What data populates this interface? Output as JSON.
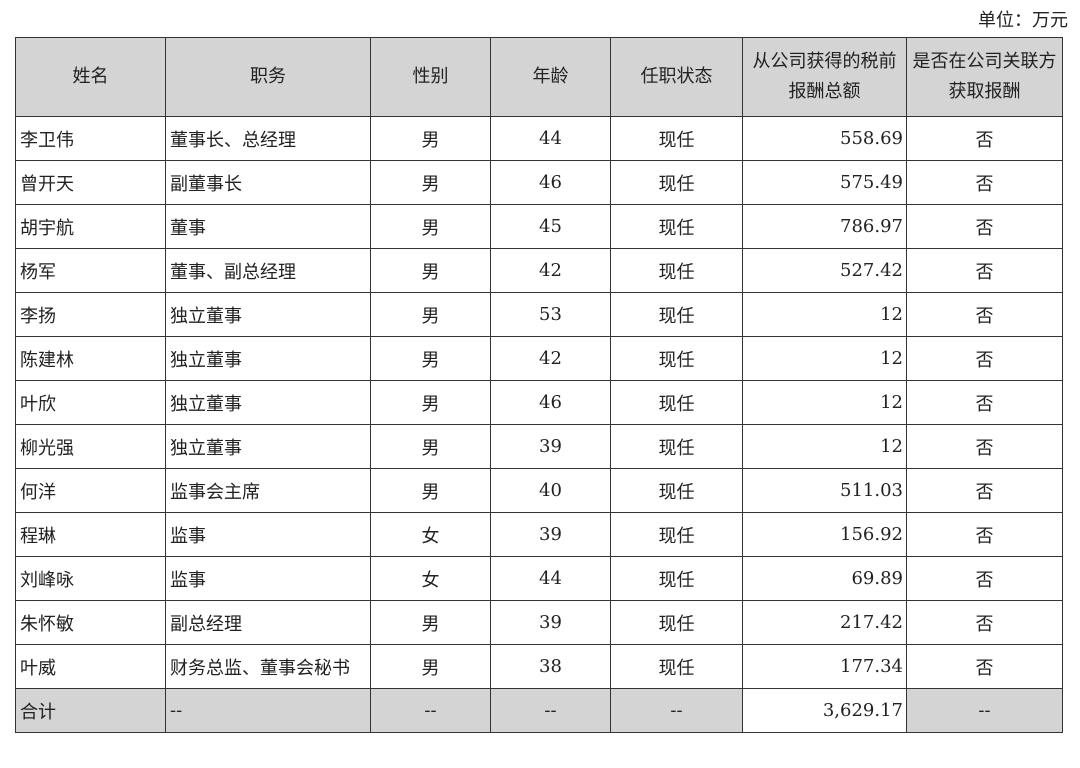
{
  "unit_label": "单位：万元",
  "headers": [
    "姓名",
    "职务",
    "性别",
    "年龄",
    "任职状态",
    "从公司获得的税前报酬总额",
    "是否在公司关联方获取报酬"
  ],
  "rows": [
    [
      "李卫伟",
      "董事长、总经理",
      "男",
      "44",
      "现任",
      "558.69",
      "否"
    ],
    [
      "曾开天",
      "副董事长",
      "男",
      "46",
      "现任",
      "575.49",
      "否"
    ],
    [
      "胡宇航",
      "董事",
      "男",
      "45",
      "现任",
      "786.97",
      "否"
    ],
    [
      "杨军",
      "董事、副总经理",
      "男",
      "42",
      "现任",
      "527.42",
      "否"
    ],
    [
      "李扬",
      "独立董事",
      "男",
      "53",
      "现任",
      "12",
      "否"
    ],
    [
      "陈建林",
      "独立董事",
      "男",
      "42",
      "现任",
      "12",
      "否"
    ],
    [
      "叶欣",
      "独立董事",
      "男",
      "46",
      "现任",
      "12",
      "否"
    ],
    [
      "柳光强",
      "独立董事",
      "男",
      "39",
      "现任",
      "12",
      "否"
    ],
    [
      "何洋",
      "监事会主席",
      "男",
      "40",
      "现任",
      "511.03",
      "否"
    ],
    [
      "程琳",
      "监事",
      "女",
      "39",
      "现任",
      "156.92",
      "否"
    ],
    [
      "刘峰咏",
      "监事",
      "女",
      "44",
      "现任",
      "69.89",
      "否"
    ],
    [
      "朱怀敏",
      "副总经理",
      "男",
      "39",
      "现任",
      "217.42",
      "否"
    ],
    [
      "叶威",
      "财务总监、董事会秘书",
      "男",
      "38",
      "现任",
      "177.34",
      "否"
    ]
  ],
  "total": [
    "合计",
    "--",
    "--",
    "--",
    "--",
    "3,629.17",
    "--"
  ]
}
